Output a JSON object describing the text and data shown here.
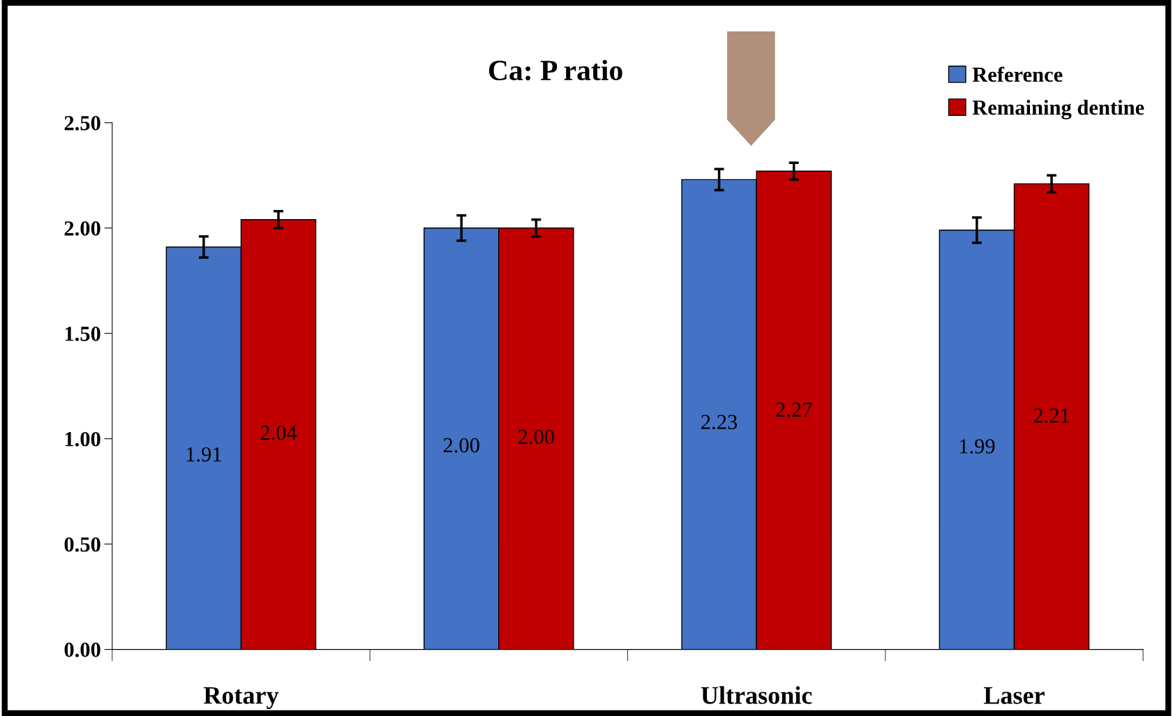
{
  "chart_data": {
    "type": "bar",
    "title": "Ca: P ratio",
    "categories": [
      "Rotary",
      null,
      "Ultrasonic",
      "Laser"
    ],
    "series": [
      {
        "name": "Reference",
        "color": "#4472c4",
        "values": [
          1.91,
          2.0,
          2.23,
          1.99
        ],
        "value_labels": [
          "1.91",
          "2.00",
          "2.23",
          "1.99"
        ],
        "errors": [
          0.05,
          0.06,
          0.05,
          0.06
        ]
      },
      {
        "name": "Remaining dentine",
        "color": "#c00000",
        "values": [
          2.04,
          2.0,
          2.27,
          2.21
        ],
        "value_labels": [
          "2.04",
          "2.00",
          "2.27",
          "2.21"
        ],
        "errors": [
          0.04,
          0.04,
          0.04,
          0.04
        ]
      }
    ],
    "ylim": [
      0,
      2.5
    ],
    "yticks": [
      {
        "value": 0,
        "label": "0.00"
      },
      {
        "value": 0.5,
        "label": "0.50"
      },
      {
        "value": 1,
        "label": "1.00"
      },
      {
        "value": 1.5,
        "label": "1.50"
      },
      {
        "value": 2,
        "label": "2.00"
      },
      {
        "value": 2.5,
        "label": "2.50"
      }
    ],
    "grid": false,
    "legend": "top right"
  }
}
